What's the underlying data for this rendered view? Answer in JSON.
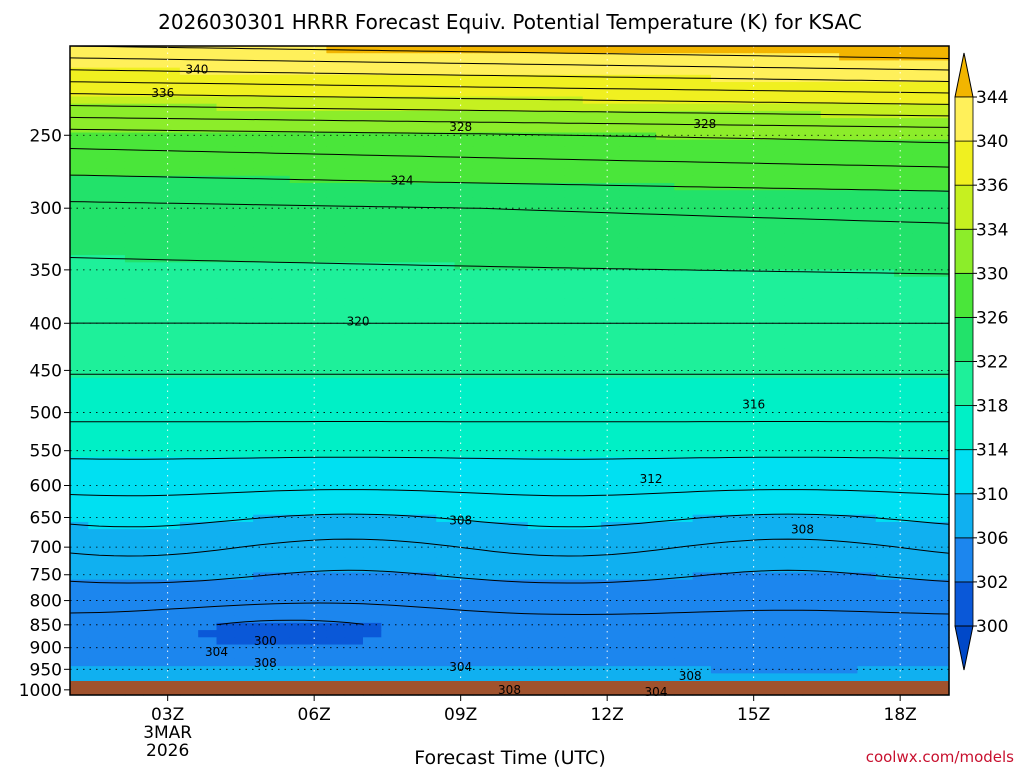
{
  "chart_data": {
    "type": "heatmap",
    "title": "2026030301 HRRR Forecast Equiv. Potential Temperature (K) for KSAC",
    "xlabel": "Forecast Time (UTC)",
    "ylabel": "",
    "credit": "coolwx.com/models",
    "x_ticks": [
      {
        "hour": 3,
        "label": "03Z",
        "sub1": "3MAR",
        "sub2": "2026"
      },
      {
        "hour": 6,
        "label": "06Z"
      },
      {
        "hour": 9,
        "label": "09Z"
      },
      {
        "hour": 12,
        "label": "12Z"
      },
      {
        "hour": 15,
        "label": "15Z"
      },
      {
        "hour": 18,
        "label": "18Z"
      }
    ],
    "x_range_hours": [
      1,
      19
    ],
    "y_axis": "pressure (hPa), log scale, inverted",
    "y_range_hpa": [
      1013,
      200
    ],
    "y_ticks": [
      250,
      300,
      350,
      400,
      450,
      500,
      550,
      600,
      650,
      700,
      750,
      800,
      850,
      900,
      950,
      1000
    ],
    "colorbar": {
      "levels": [
        300,
        302,
        306,
        310,
        314,
        318,
        322,
        326,
        330,
        334,
        336,
        340,
        344
      ],
      "colors": [
        "#0a58d8",
        "#1c86ee",
        "#10b0f0",
        "#00e0f2",
        "#00f0c6",
        "#1ef09a",
        "#22e26a",
        "#4ae63a",
        "#8ced2a",
        "#c6f020",
        "#f0f020",
        "#fff05a",
        "#f5c400"
      ],
      "under_color": "#0048c8",
      "over_color": "#f2b500"
    },
    "contour_labels": [
      {
        "value": "340",
        "hour": 3.6,
        "p": 212
      },
      {
        "value": "336",
        "hour": 2.9,
        "p": 225
      },
      {
        "value": "328",
        "hour": 9.0,
        "p": 245
      },
      {
        "value": "328",
        "hour": 14.0,
        "p": 243
      },
      {
        "value": "324",
        "hour": 7.8,
        "p": 280
      },
      {
        "value": "320",
        "hour": 6.9,
        "p": 398
      },
      {
        "value": "316",
        "hour": 15.0,
        "p": 490
      },
      {
        "value": "312",
        "hour": 12.9,
        "p": 590
      },
      {
        "value": "308",
        "hour": 9.0,
        "p": 655
      },
      {
        "value": "308",
        "hour": 16.0,
        "p": 670
      },
      {
        "value": "304",
        "hour": 4.0,
        "p": 910
      },
      {
        "value": "300",
        "hour": 5.0,
        "p": 885
      },
      {
        "value": "308",
        "hour": 5.0,
        "p": 935
      },
      {
        "value": "304",
        "hour": 9.0,
        "p": 944
      },
      {
        "value": "308",
        "hour": 13.7,
        "p": 966
      },
      {
        "value": "308",
        "hour": 10.0,
        "p": 1000
      },
      {
        "value": "304",
        "hour": 13.0,
        "p": 1005
      }
    ],
    "theta_e_profile": [
      {
        "p": 200,
        "k": 344
      },
      {
        "p": 250,
        "k": 329
      },
      {
        "p": 300,
        "k": 323.5
      },
      {
        "p": 400,
        "k": 320
      },
      {
        "p": 500,
        "k": 316.5
      },
      {
        "p": 600,
        "k": 312.5
      },
      {
        "p": 700,
        "k": 308
      },
      {
        "p": 800,
        "k": 304.5
      },
      {
        "p": 850,
        "k": 303.5
      },
      {
        "p": 900,
        "k": 304.5
      },
      {
        "p": 950,
        "k": 306.5
      },
      {
        "p": 1000,
        "k": 309
      },
      {
        "p": 1013,
        "k": 309
      }
    ],
    "grid": true,
    "terrain_color": "#a0522d"
  }
}
